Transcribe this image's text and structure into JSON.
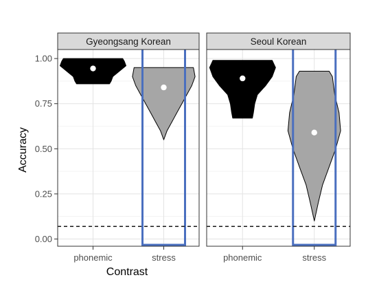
{
  "chart_data": {
    "type": "violin",
    "facets": [
      {
        "title": "Gyeongsang Korean",
        "categories": [
          "phonemic",
          "stress"
        ],
        "series": [
          {
            "category": "phonemic",
            "fill": "#000000",
            "mean": 0.945,
            "range": [
              0.86,
              1.0
            ],
            "density": [
              [
                0.86,
                0.5
              ],
              [
                0.875,
                0.55
              ],
              [
                0.9,
                0.6
              ],
              [
                0.93,
                0.8
              ],
              [
                0.96,
                1.0
              ],
              [
                0.985,
                0.95
              ],
              [
                1.0,
                0.9
              ]
            ]
          },
          {
            "category": "stress",
            "fill": "#a6a6a6",
            "mean": 0.84,
            "range": [
              0.55,
              0.95
            ],
            "density": [
              [
                0.55,
                0.0
              ],
              [
                0.6,
                0.1
              ],
              [
                0.65,
                0.25
              ],
              [
                0.7,
                0.4
              ],
              [
                0.75,
                0.55
              ],
              [
                0.8,
                0.7
              ],
              [
                0.85,
                0.85
              ],
              [
                0.9,
                0.95
              ],
              [
                0.95,
                0.9
              ]
            ],
            "highlighted": true
          }
        ]
      },
      {
        "title": "Seoul Korean",
        "categories": [
          "phonemic",
          "stress"
        ],
        "series": [
          {
            "category": "phonemic",
            "fill": "#000000",
            "mean": 0.89,
            "range": [
              0.67,
              0.99
            ],
            "density": [
              [
                0.67,
                0.3
              ],
              [
                0.7,
                0.33
              ],
              [
                0.75,
                0.37
              ],
              [
                0.8,
                0.45
              ],
              [
                0.85,
                0.7
              ],
              [
                0.9,
                0.9
              ],
              [
                0.95,
                1.0
              ],
              [
                0.99,
                0.9
              ]
            ]
          },
          {
            "category": "stress",
            "fill": "#a6a6a6",
            "mean": 0.59,
            "range": [
              0.1,
              0.93
            ],
            "density": [
              [
                0.1,
                0.0
              ],
              [
                0.2,
                0.12
              ],
              [
                0.3,
                0.25
              ],
              [
                0.4,
                0.45
              ],
              [
                0.5,
                0.65
              ],
              [
                0.6,
                0.8
              ],
              [
                0.7,
                0.75
              ],
              [
                0.8,
                0.62
              ],
              [
                0.9,
                0.55
              ],
              [
                0.93,
                0.45
              ]
            ],
            "highlighted": true
          }
        ]
      }
    ],
    "xlabel": "Contrast",
    "ylabel": "Accuracy",
    "yticks": [
      0.0,
      0.25,
      0.5,
      0.75,
      1.0
    ],
    "ytick_labels": [
      "0.00",
      "0.25",
      "0.50",
      "0.75",
      "1.00"
    ],
    "ylim": [
      -0.04,
      1.05
    ],
    "reference_line": 0.07,
    "grid": true,
    "highlight_color": "#4a6fbf"
  }
}
